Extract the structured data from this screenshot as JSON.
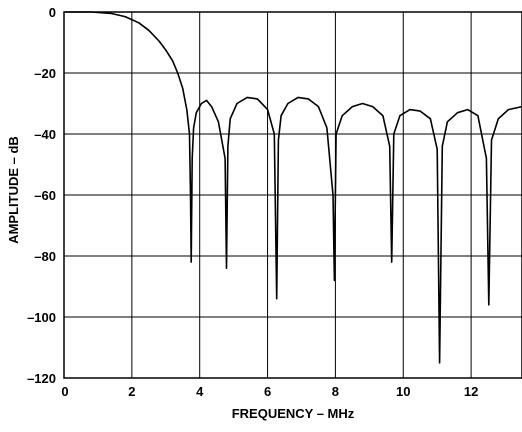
{
  "chart_data": {
    "type": "line",
    "title": "",
    "xlabel": "FREQUENCY – MHz",
    "ylabel": "AMPLITUDE – dB",
    "xlim": [
      0,
      13.5
    ],
    "ylim": [
      -120,
      0
    ],
    "xticks": [
      0,
      2,
      4,
      6,
      8,
      10,
      12
    ],
    "yticks": [
      0,
      -20,
      -40,
      -60,
      -80,
      -100,
      -120
    ],
    "xtick_labels": [
      "0",
      "2",
      "4",
      "6",
      "8",
      "10",
      "12"
    ],
    "ytick_labels": [
      "0",
      "–20",
      "–40",
      "–60",
      "–80",
      "–100",
      "–120"
    ],
    "grid": true,
    "legend": "none",
    "series": [
      {
        "color": "#000000",
        "x": [
          0,
          0.8,
          1.4,
          1.8,
          2.2,
          2.5,
          2.8,
          3.0,
          3.2,
          3.35,
          3.5,
          3.62,
          3.7,
          3.73,
          3.75,
          3.78,
          3.82,
          3.9,
          4.05,
          4.2,
          4.35,
          4.55,
          4.75,
          4.79,
          4.83,
          4.9,
          5.1,
          5.4,
          5.7,
          6.0,
          6.2,
          6.27,
          6.32,
          6.4,
          6.6,
          6.9,
          7.2,
          7.5,
          7.75,
          7.93,
          7.97,
          8.02,
          8.2,
          8.5,
          8.8,
          9.1,
          9.4,
          9.6,
          9.66,
          9.72,
          9.9,
          10.2,
          10.5,
          10.8,
          11.0,
          11.07,
          11.15,
          11.3,
          11.6,
          11.9,
          12.2,
          12.45,
          12.52,
          12.6,
          12.8,
          13.1,
          13.5
        ],
        "y": [
          0,
          0,
          -0.5,
          -1.5,
          -3.5,
          -6,
          -9.5,
          -12.5,
          -16,
          -20,
          -25,
          -32,
          -40,
          -60,
          -82,
          -48,
          -38,
          -33,
          -30,
          -29,
          -31,
          -36,
          -48,
          -84,
          -44,
          -35,
          -30,
          -28,
          -28.5,
          -32,
          -40,
          -94,
          -42,
          -34,
          -30,
          -28,
          -28.5,
          -31,
          -38,
          -60,
          -88,
          -40,
          -34,
          -31,
          -30,
          -31,
          -34,
          -44,
          -82,
          -40,
          -34,
          -32,
          -32.5,
          -35,
          -45,
          -115,
          -44,
          -36,
          -33,
          -32,
          -34,
          -48,
          -96,
          -42,
          -35,
          -32,
          -31
        ]
      }
    ]
  }
}
